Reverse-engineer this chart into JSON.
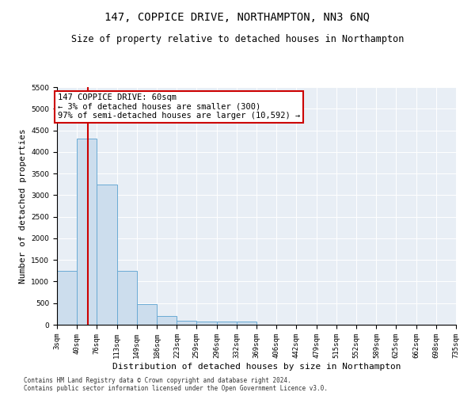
{
  "title": "147, COPPICE DRIVE, NORTHAMPTON, NN3 6NQ",
  "subtitle": "Size of property relative to detached houses in Northampton",
  "xlabel": "Distribution of detached houses by size in Northampton",
  "ylabel": "Number of detached properties",
  "bin_edges": [
    3,
    40,
    76,
    113,
    149,
    186,
    223,
    259,
    296,
    332,
    369,
    406,
    442,
    479,
    515,
    552,
    589,
    625,
    662,
    698,
    735
  ],
  "bar_heights": [
    1250,
    4300,
    3250,
    1250,
    480,
    200,
    100,
    70,
    70,
    70,
    0,
    0,
    0,
    0,
    0,
    0,
    0,
    0,
    0,
    0
  ],
  "bar_color": "#ccdded",
  "bar_edgecolor": "#6aaad4",
  "property_line_x": 60,
  "property_line_color": "#cc0000",
  "annotation_line1": "147 COPPICE DRIVE: 60sqm",
  "annotation_line2": "← 3% of detached houses are smaller (300)",
  "annotation_line3": "97% of semi-detached houses are larger (10,592) →",
  "annotation_box_color": "#cc0000",
  "ylim": [
    0,
    5500
  ],
  "yticks": [
    0,
    500,
    1000,
    1500,
    2000,
    2500,
    3000,
    3500,
    4000,
    4500,
    5000,
    5500
  ],
  "plot_bg_color": "#e8eef5",
  "grid_color": "#ffffff",
  "footer_line1": "Contains HM Land Registry data © Crown copyright and database right 2024.",
  "footer_line2": "Contains public sector information licensed under the Open Government Licence v3.0.",
  "title_fontsize": 10,
  "subtitle_fontsize": 8.5,
  "xlabel_fontsize": 8,
  "ylabel_fontsize": 8,
  "tick_fontsize": 6.5,
  "annotation_fontsize": 7.5,
  "footer_fontsize": 5.5
}
